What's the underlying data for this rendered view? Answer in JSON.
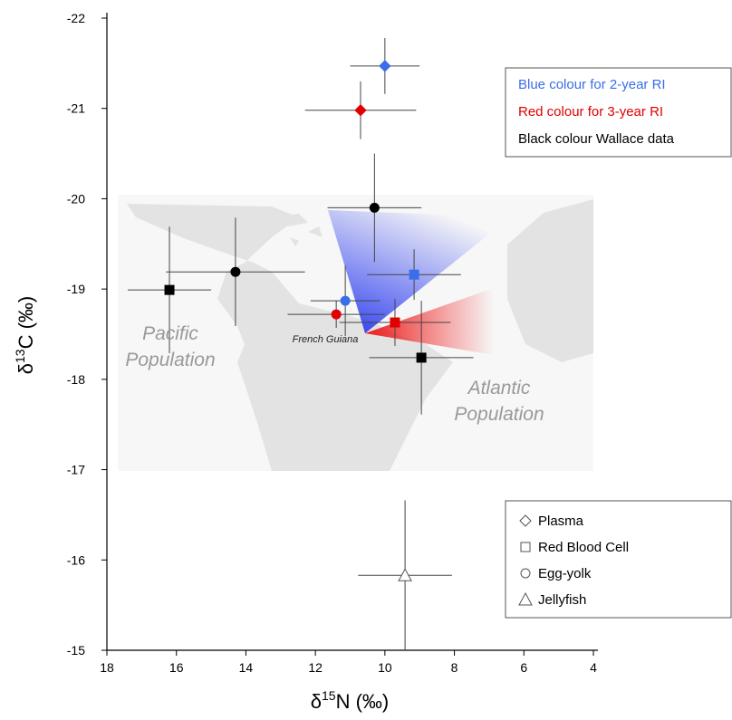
{
  "chart_data": {
    "type": "scatter",
    "x_label": {
      "prefix": "δ",
      "sup": "15",
      "suffix": "N (‰)"
    },
    "y_label": {
      "prefix": "δ",
      "sup": "13",
      "suffix": "C (‰)"
    },
    "xlim": [
      18,
      4
    ],
    "ylim": [
      -15,
      -22
    ],
    "xticks": [
      18,
      16,
      14,
      12,
      10,
      8,
      6,
      4
    ],
    "yticks": [
      -22,
      -21,
      -20,
      -19,
      -18,
      -17,
      -16,
      -15
    ],
    "series": [
      {
        "color": "#3a6ee8",
        "markers": [
          "diamond",
          "square",
          "circle"
        ],
        "x": [
          10.0,
          9.16,
          11.14
        ],
        "y": [
          -21.47,
          -19.16,
          -18.87
        ],
        "xerr": [
          1.0,
          1.35,
          1.0
        ],
        "yerr": [
          0.31,
          0.28,
          0.39
        ]
      },
      {
        "color": "#e00000",
        "markers": [
          "diamond",
          "circle",
          "square"
        ],
        "x": [
          10.7,
          11.4,
          9.71
        ],
        "y": [
          -20.98,
          -18.72,
          -18.63
        ],
        "xerr": [
          1.6,
          1.4,
          1.6
        ],
        "yerr": [
          0.32,
          0.15,
          0.26
        ]
      },
      {
        "color": "#000000",
        "markers": [
          "circle",
          "circle",
          "square",
          "square"
        ],
        "x": [
          10.3,
          14.3,
          16.2,
          8.95
        ],
        "y": [
          -19.9,
          -19.19,
          -18.99,
          -18.24
        ],
        "xerr": [
          1.35,
          2.0,
          1.2,
          1.5
        ],
        "yerr": [
          0.6,
          0.6,
          0.7,
          0.63
        ]
      },
      {
        "color": "#ffffff",
        "markers": [
          "triangle"
        ],
        "x": [
          9.42
        ],
        "y": [
          -15.83
        ],
        "xerr": [
          1.35
        ],
        "yerr": [
          0.83
        ]
      }
    ],
    "color_legend": [
      {
        "label": "Blue colour for 2-year RI",
        "color": "#3a6ee8"
      },
      {
        "label": "Red colour for 3-year RI",
        "color": "#e00000"
      },
      {
        "label": "Black colour Wallace data",
        "color": "#000000"
      }
    ],
    "shape_legend": [
      {
        "label": "Plasma",
        "marker": "diamond"
      },
      {
        "label": "Red Blood Cell",
        "marker": "square"
      },
      {
        "label": "Egg-yolk",
        "marker": "circle"
      },
      {
        "label": "Jellyfish",
        "marker": "triangle"
      }
    ],
    "annotations": [
      "Pacific",
      "Population",
      "Atlantic",
      "Population",
      "French Guiana"
    ]
  }
}
